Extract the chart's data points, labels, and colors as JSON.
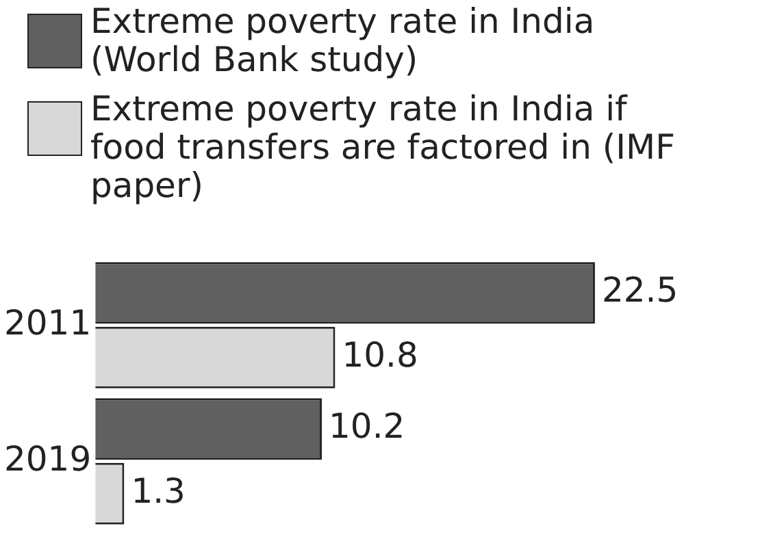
{
  "chart_data": {
    "type": "bar",
    "orientation": "horizontal",
    "categories": [
      "2011",
      "2019"
    ],
    "series": [
      {
        "name": "Extreme poverty rate in India (World Bank study)",
        "color": "#606060",
        "values": [
          22.5,
          10.2
        ]
      },
      {
        "name": "Extreme poverty rate in India if food transfers are factored in (IMF paper)",
        "color": "#d8d8d8",
        "values": [
          10.8,
          1.3
        ]
      }
    ],
    "data_labels": true,
    "legend": "top",
    "grid": false
  }
}
